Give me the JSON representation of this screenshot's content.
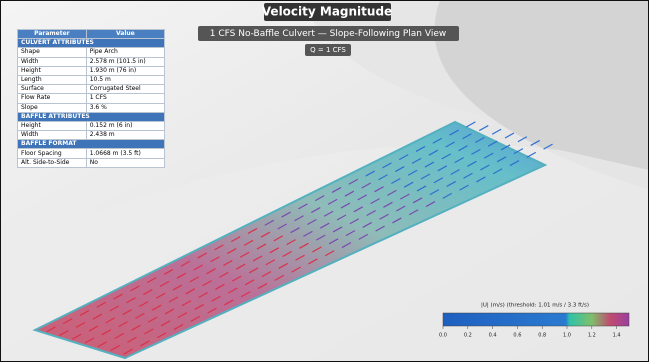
{
  "header": {
    "title": "Velocity Magnitude",
    "subtitle": "1 CFS No-Baffle Culvert — Slope-Following Plan View",
    "flow": "Q = 1 CFS"
  },
  "table": {
    "columns": [
      "Parameter",
      "Value"
    ],
    "rows": [
      [
        "CULVERT ATTRIBUTES"
      ],
      [
        "Shape",
        "Pipe Arch"
      ],
      [
        "Width",
        "2.578 m  (101.5 in)"
      ],
      [
        "Height",
        "1.930 m  (76 in)"
      ],
      [
        "Length",
        "10.5 m"
      ],
      [
        "Surface",
        "Corrugated Steel"
      ],
      [
        "Flow Rate",
        "1 CFS"
      ],
      [
        "Slope",
        "3.6 %"
      ],
      [
        "BAFFLE ATTRIBUTES"
      ],
      [
        "Height",
        "0.152 m  (6 in)"
      ],
      [
        "Width",
        "2.438 m"
      ],
      [
        "BAFFLE FORMAT"
      ],
      [
        "Floor Spacing",
        "1.0668 m  (3.5 ft)"
      ],
      [
        "Alt. Side-to-Side",
        "No"
      ]
    ]
  },
  "colorbar": {
    "label": "|U| (m/s)   (threshold: 1.01 m/s  /  3.3 ft/s)",
    "range": [
      0,
      1.5
    ],
    "ticks": [
      {
        "value": 0,
        "label": "0.0"
      },
      {
        "value": 0.2,
        "label": "0.2"
      },
      {
        "value": 0.4,
        "label": "0.4"
      },
      {
        "value": 0.6,
        "label": "0.6"
      },
      {
        "value": 0.8,
        "label": "0.8"
      },
      {
        "value": 1.0,
        "label": "1.0"
      },
      {
        "value": 1.2,
        "label": "1.2"
      },
      {
        "value": 1.4,
        "label": "1.4"
      }
    ]
  }
}
